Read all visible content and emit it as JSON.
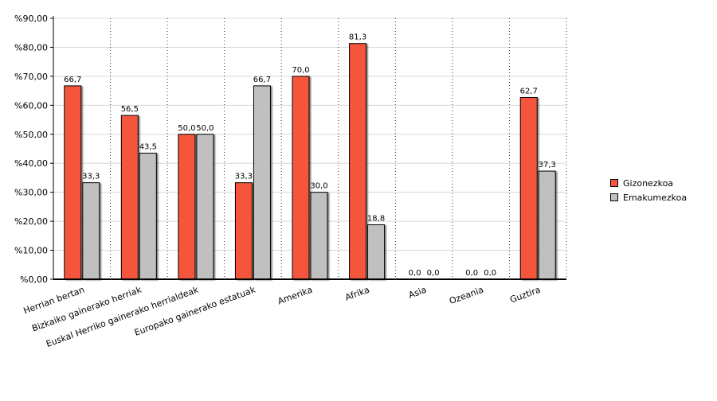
{
  "chart_data": {
    "type": "bar",
    "categories": [
      "Herrian bertan",
      "Bizkaiko gainerako herriak",
      "Euskal Herriko gainerako herrialdeak",
      "Europako gainerako estatuak",
      "Amerika",
      "Afrika",
      "Asia",
      "Ozeania",
      "Guztira"
    ],
    "series": [
      {
        "name": "Gizonezkoa",
        "color": "#f4553b",
        "values": [
          66.7,
          56.5,
          50.0,
          33.3,
          70.0,
          81.3,
          0.0,
          0.0,
          62.7
        ],
        "labels": [
          "66,7",
          "56,5",
          "50,0",
          "33,3",
          "70,0",
          "81,3",
          "0,0",
          "0,0",
          "62,7"
        ]
      },
      {
        "name": "Emakumezkoa",
        "color": "#c0c0c0",
        "values": [
          33.3,
          43.5,
          50.0,
          66.7,
          30.0,
          18.8,
          0.0,
          0.0,
          37.3
        ],
        "labels": [
          "33,3",
          "43,5",
          "50,0",
          "66,7",
          "30,0",
          "18,8",
          "0,0",
          "0,0",
          "37,3"
        ]
      }
    ],
    "yticks": [
      "%0,00",
      "%10,00",
      "%20,00",
      "%30,00",
      "%40,00",
      "%50,00",
      "%60,00",
      "%70,00",
      "%80,00",
      "%90,00"
    ],
    "ylim": [
      0,
      90
    ],
    "grid": true,
    "legend_position": "right",
    "title": "",
    "xlabel": "",
    "ylabel": ""
  }
}
